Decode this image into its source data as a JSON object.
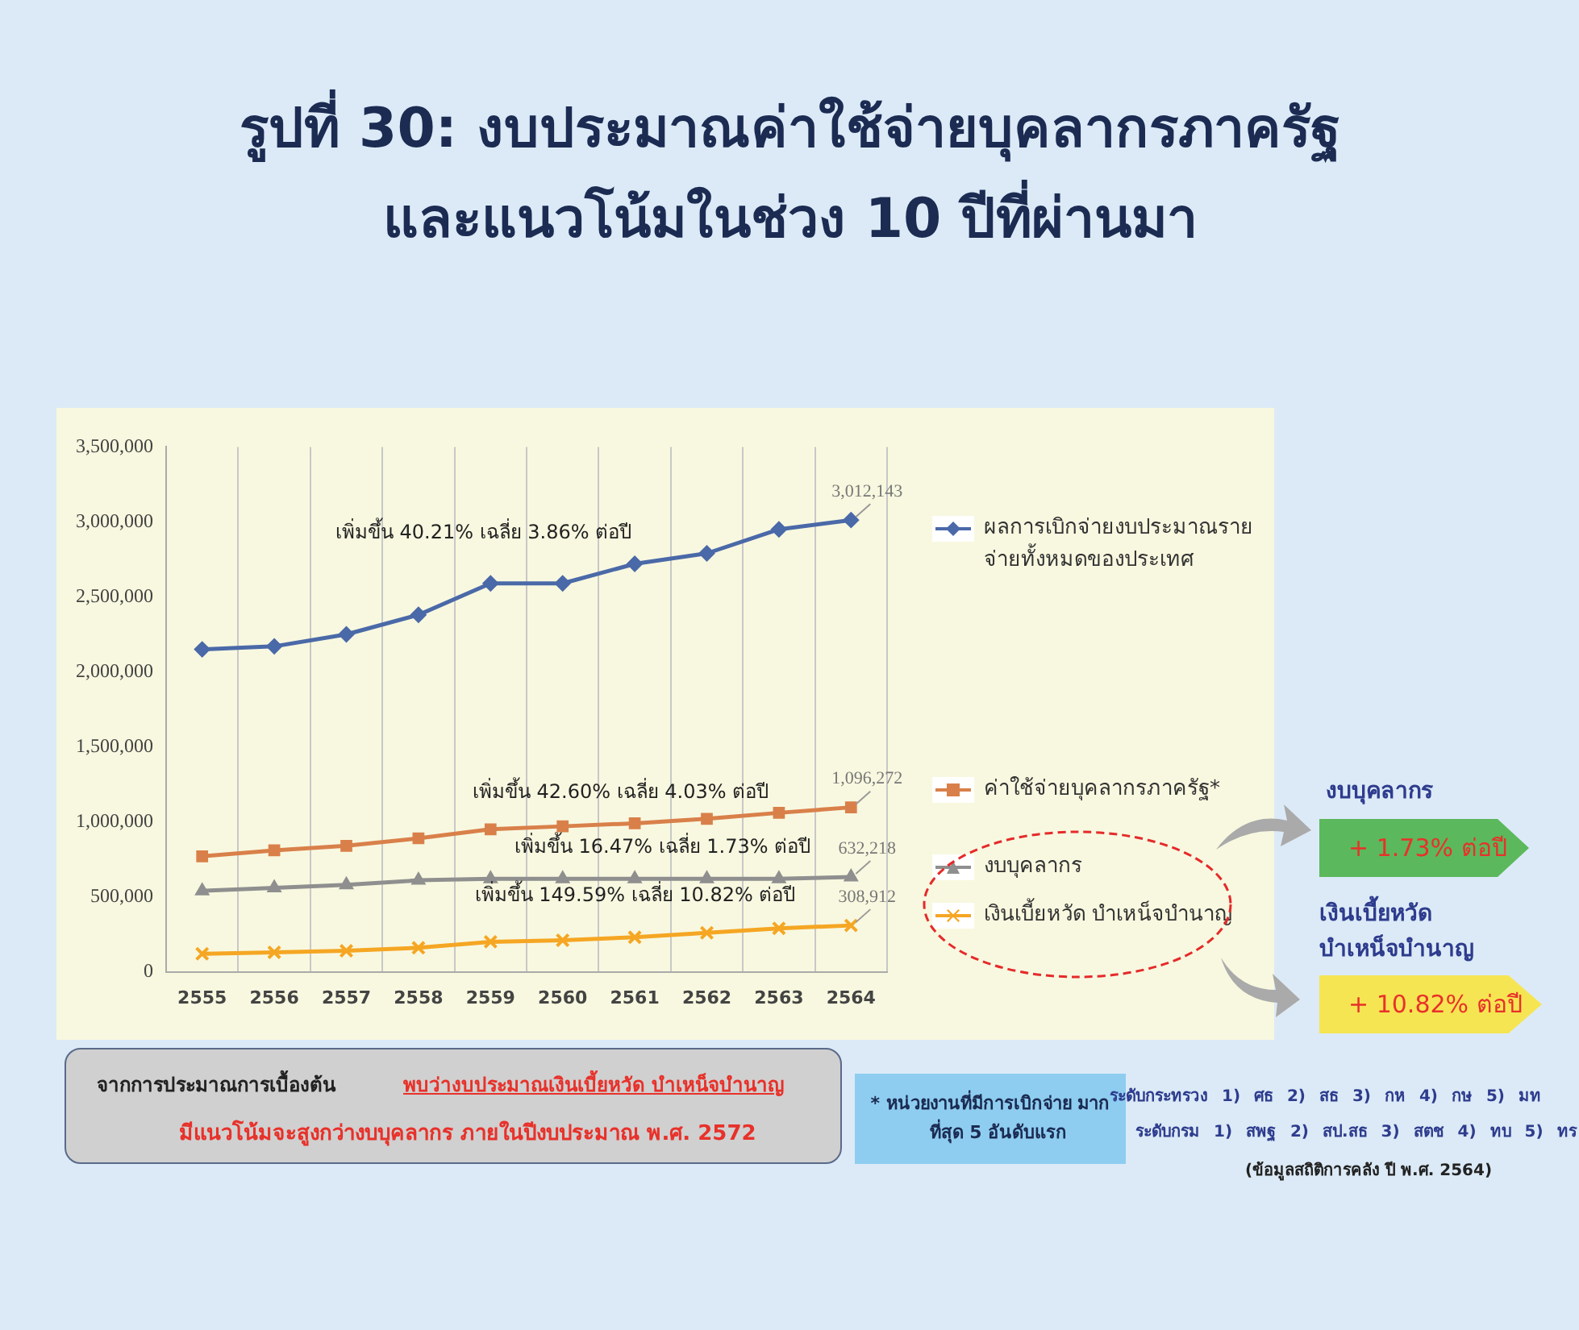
{
  "chart_data": {
    "type": "line",
    "title": "รูปที่ 30: งบประมาณค่าใช้จ่ายบุคลากรภาครัฐ และแนวโน้มในช่วง 10 ปีที่ผ่านมา",
    "categories": [
      "2555",
      "2556",
      "2557",
      "2558",
      "2559",
      "2560",
      "2561",
      "2562",
      "2563",
      "2564"
    ],
    "ylim": [
      0,
      3500000
    ],
    "yticks": [
      0,
      {
        "value": 500000,
        "label": "500,000"
      },
      {
        "value": 1000000,
        "label": "1,000,000"
      },
      {
        "value": 1500000,
        "label": "1,500,000"
      },
      {
        "value": 2000000,
        "label": "2,000,000"
      },
      {
        "value": 2500000,
        "label": "2,500,000"
      },
      {
        "value": 3000000,
        "label": "3,000,000"
      },
      {
        "value": 3500000,
        "label": "3,500,000"
      }
    ],
    "grid": "x",
    "legend": "right",
    "line_style": "solid",
    "series": [
      {
        "name": "ผลการเบิกจ่ายงบประมาณรายจ่ายทั้งหมดของประเทศ",
        "color": "#4a69a8",
        "marker": "diamond",
        "values": [
          2150000,
          2170000,
          2250000,
          2380000,
          2590000,
          2590000,
          2720000,
          2790000,
          2950000,
          3012143
        ],
        "value_labels": [
          null,
          null,
          null,
          null,
          null,
          null,
          null,
          null,
          null,
          "3,012,143"
        ]
      },
      {
        "name": "ค่าใช้จ่ายบุคลากรภาครัฐ*",
        "color": "#d9804a",
        "marker": "square",
        "values": [
          770000,
          810000,
          840000,
          890000,
          950000,
          970000,
          990000,
          1020000,
          1060000,
          1096272
        ],
        "value_labels": [
          null,
          null,
          null,
          null,
          null,
          null,
          null,
          null,
          null,
          "1,096,272"
        ]
      },
      {
        "name": "งบบุคลากร",
        "color": "#8f8f8f",
        "marker": "triangle",
        "values": [
          540000,
          560000,
          580000,
          610000,
          620000,
          620000,
          620000,
          620000,
          620000,
          632218
        ],
        "value_labels": [
          null,
          null,
          null,
          null,
          null,
          null,
          null,
          null,
          null,
          "632,218"
        ]
      },
      {
        "name": "เงินเบี้ยหวัด บำเหน็จบำนาญ",
        "color": "#f5a623",
        "marker": "cross",
        "values": [
          120000,
          130000,
          140000,
          160000,
          200000,
          210000,
          230000,
          260000,
          290000,
          308912
        ],
        "value_labels": [
          null,
          null,
          null,
          null,
          null,
          null,
          null,
          null,
          null,
          "308,912"
        ]
      }
    ],
    "annotations": [
      "เพิ่มขึ้น 40.21% เฉลี่ย 3.86% ต่อปี",
      "เพิ่มขึ้น 42.60% เฉลี่ย 4.03% ต่อปี",
      "เพิ่มขึ้น 16.47% เฉลี่ย 1.73% ต่อปี",
      "เพิ่มขึ้น 149.59% เฉลี่ย 10.82% ต่อปี",
      "งบบุคลากร",
      "+ 1.73% ต่อปี",
      "เงินเบี้ยหวัด บำเหน็จบำนาญ",
      "+ 10.82% ต่อปี",
      "จากการประมาณการเบื้องต้น",
      "พบว่างบประมาณเงินเบี้ยหวัด บำเหน็จบำนาญ",
      "มีแนวโน้มจะสูงกว่างบบุคลากร ภายในปีงบประมาณ พ.ศ. 2572",
      "* หน่วยงานที่มีการเบิกจ่าย มากที่สุด 5 อันดับแรก",
      "ระดับกระทรวง 1) ศธ 2) สธ 3) กห 4) กษ 5) มท",
      "ระดับกรม 1) สพฐ 2) สป.สธ 3) สตช 4) ทบ 5) ทร",
      "(ข้อมูลสถิติการคลัง ปี พ.ศ. 2564)"
    ]
  }
}
